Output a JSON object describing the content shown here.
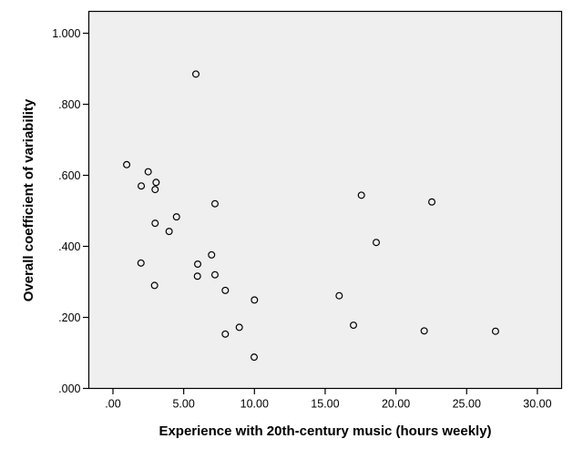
{
  "figure": {
    "background": "#ffffff"
  },
  "chart_data": {
    "type": "scatter",
    "title": "",
    "xlabel": "Experience with 20th-century music (hours weekly)",
    "ylabel": "Overall coefficient of variability",
    "xlim": [
      -1.7,
      31.7
    ],
    "ylim": [
      0.0,
      1.062
    ],
    "grid": false,
    "legend": "none",
    "plot_bg_color": "#efefef",
    "frame_color": "#000000",
    "marker": {
      "shape": "open-circle",
      "stroke_color": "#000000",
      "fill": "none"
    },
    "xticks": {
      "values": [
        0,
        5,
        10,
        15,
        20,
        25,
        30
      ],
      "labels": [
        ".00",
        "5.00",
        "10.00",
        "15.00",
        "20.00",
        "25.00",
        "30.00"
      ]
    },
    "yticks": {
      "values": [
        0.0,
        0.2,
        0.4,
        0.6,
        0.8,
        1.0
      ],
      "labels": [
        ".000",
        ".200",
        ".400",
        ".600",
        ".800",
        "1.000"
      ]
    },
    "points": [
      {
        "x": 0.97,
        "y": 0.63
      },
      {
        "x": 2.49,
        "y": 0.61
      },
      {
        "x": 2.0,
        "y": 0.57
      },
      {
        "x": 3.05,
        "y": 0.58
      },
      {
        "x": 2.98,
        "y": 0.56
      },
      {
        "x": 7.21,
        "y": 0.52
      },
      {
        "x": 2.98,
        "y": 0.465
      },
      {
        "x": 4.49,
        "y": 0.483
      },
      {
        "x": 3.97,
        "y": 0.442
      },
      {
        "x": 5.86,
        "y": 0.885
      },
      {
        "x": 1.98,
        "y": 0.353
      },
      {
        "x": 6.97,
        "y": 0.376
      },
      {
        "x": 5.99,
        "y": 0.35
      },
      {
        "x": 5.97,
        "y": 0.316
      },
      {
        "x": 7.21,
        "y": 0.32
      },
      {
        "x": 2.94,
        "y": 0.29
      },
      {
        "x": 7.94,
        "y": 0.276
      },
      {
        "x": 10.0,
        "y": 0.249
      },
      {
        "x": 8.93,
        "y": 0.172
      },
      {
        "x": 7.94,
        "y": 0.153
      },
      {
        "x": 9.98,
        "y": 0.088
      },
      {
        "x": 17.56,
        "y": 0.544
      },
      {
        "x": 22.54,
        "y": 0.525
      },
      {
        "x": 18.61,
        "y": 0.411
      },
      {
        "x": 15.99,
        "y": 0.261
      },
      {
        "x": 17.0,
        "y": 0.178
      },
      {
        "x": 22.0,
        "y": 0.162
      },
      {
        "x": 27.04,
        "y": 0.161
      }
    ]
  }
}
